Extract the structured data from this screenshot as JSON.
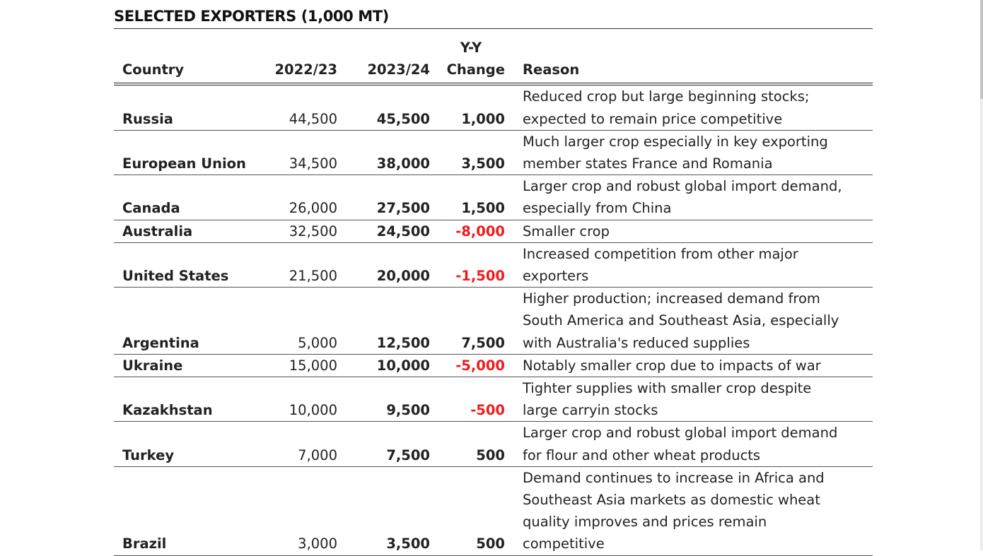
{
  "chart_data": {
    "type": "table",
    "title": "SELECTED EXPORTERS (1,000 MT)",
    "columns": [
      "Country",
      "2022/23",
      "2023/24",
      "Y-Y Change",
      "Reason"
    ],
    "header_labels": {
      "country": "Country",
      "y2022": "2022/23",
      "y2023": "2023/24",
      "change_line1": "Y-Y",
      "change_line2": "Change",
      "reason": "Reason"
    },
    "rows": [
      {
        "country": "Russia",
        "y2022": "44,500",
        "y2023": "45,500",
        "change": "1,000",
        "negative": false,
        "reason_lines": [
          "Reduced crop but large beginning stocks;",
          "expected to remain price competitive"
        ]
      },
      {
        "country": "European Union",
        "y2022": "34,500",
        "y2023": "38,000",
        "change": "3,500",
        "negative": false,
        "reason_lines": [
          "Much larger crop especially in key exporting",
          "member states France and Romania"
        ]
      },
      {
        "country": "Canada",
        "y2022": "26,000",
        "y2023": "27,500",
        "change": "1,500",
        "negative": false,
        "reason_lines": [
          "Larger crop and robust global import demand,",
          "especially from China"
        ]
      },
      {
        "country": "Australia",
        "y2022": "32,500",
        "y2023": "24,500",
        "change": "-8,000",
        "negative": true,
        "reason_lines": [
          "Smaller crop"
        ]
      },
      {
        "country": "United States",
        "y2022": "21,500",
        "y2023": "20,000",
        "change": "-1,500",
        "negative": true,
        "reason_lines": [
          "Increased competition from other major",
          "exporters"
        ]
      },
      {
        "country": "Argentina",
        "y2022": "5,000",
        "y2023": "12,500",
        "change": "7,500",
        "negative": false,
        "reason_lines": [
          "Higher production; increased demand from",
          "South America and Southeast Asia, especially",
          "with Australia's reduced supplies"
        ]
      },
      {
        "country": "Ukraine",
        "y2022": "15,000",
        "y2023": "10,000",
        "change": "-5,000",
        "negative": true,
        "reason_lines": [
          "Notably smaller crop due to impacts of war"
        ]
      },
      {
        "country": "Kazakhstan",
        "y2022": "10,000",
        "y2023": "9,500",
        "change": "-500",
        "negative": true,
        "reason_lines": [
          "Tighter supplies with smaller crop despite",
          "large carryin stocks"
        ]
      },
      {
        "country": "Turkey",
        "y2022": "7,000",
        "y2023": "7,500",
        "change": "500",
        "negative": false,
        "reason_lines": [
          "Larger crop and robust global import demand",
          "for flour and other wheat products"
        ]
      },
      {
        "country": "Brazil",
        "y2022": "3,000",
        "y2023": "3,500",
        "change": "500",
        "negative": false,
        "reason_lines": [
          "Demand continues to increase in Africa and",
          "Southeast Asia markets as domestic wheat",
          "quality improves and prices remain",
          "competitive"
        ]
      }
    ],
    "negative_color": "#ee1c1c"
  }
}
